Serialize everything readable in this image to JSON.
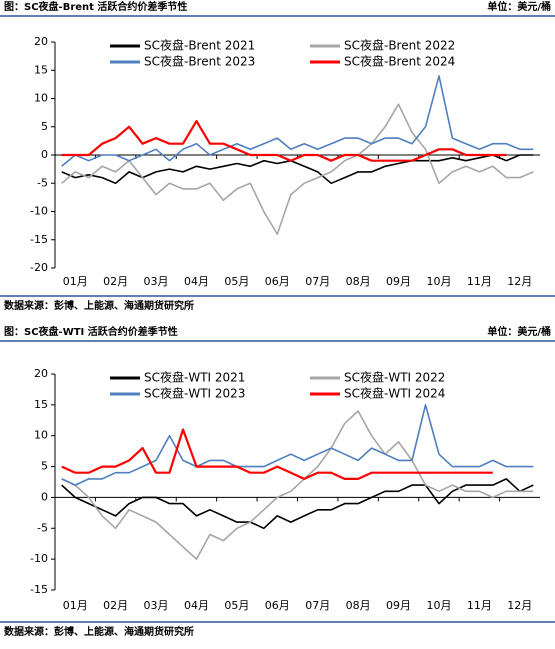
{
  "chart_data": [
    {
      "type": "line",
      "title": "图：SC夜盘-Brent 活跃合约价差季节性",
      "unit": "单位：美元/桶",
      "source": "数据来源：彭博、上能源、海通期货研究所",
      "categories": [
        "01月",
        null,
        null,
        "02月",
        null,
        null,
        "03月",
        null,
        null,
        "04月",
        null,
        null,
        "05月",
        null,
        null,
        "06月",
        null,
        null,
        "07月",
        null,
        null,
        "08月",
        null,
        null,
        "09月",
        null,
        null,
        "10月",
        null,
        null,
        "11月",
        null,
        null,
        "12月",
        null,
        null
      ],
      "ylim": [
        -20,
        20
      ],
      "yticks": [
        -20,
        -15,
        -10,
        -5,
        0,
        5,
        10,
        15,
        20
      ],
      "series": [
        {
          "name": "SC夜盘-Brent 2021",
          "color": "#000000",
          "values": [
            -3,
            -4,
            -3.5,
            -4,
            -5,
            -3,
            -4,
            -3,
            -2.5,
            -3,
            -2,
            -2.5,
            -2,
            -1.5,
            -2,
            -1,
            -1.5,
            -1,
            -2,
            -3,
            -5,
            -4,
            -3,
            -3,
            -2,
            -1.5,
            -1,
            -1,
            -1,
            -0.5,
            -1,
            -0.5,
            0,
            -1,
            0,
            0
          ]
        },
        {
          "name": "SC夜盘-Brent 2022",
          "color": "#a6a6a6",
          "values": [
            -5,
            -3,
            -4,
            -2,
            -3,
            -1,
            -4,
            -7,
            -5,
            -6,
            -6,
            -5,
            -8,
            -6,
            -5,
            -10,
            -14,
            -7,
            -5,
            -4,
            -3,
            -1,
            0,
            2,
            5,
            9,
            4,
            1,
            -5,
            -3,
            -2,
            -3,
            -2,
            -4,
            -4,
            -3
          ]
        },
        {
          "name": "SC夜盘-Brent 2023",
          "color": "#4f7fbf",
          "values": [
            -2,
            0,
            -1,
            0,
            0,
            -1,
            0,
            1,
            -1,
            1,
            2,
            0,
            1,
            2,
            1,
            2,
            3,
            1,
            2,
            1,
            2,
            3,
            3,
            2,
            3,
            3,
            2,
            5,
            14,
            3,
            2,
            1,
            2,
            2,
            1,
            1
          ]
        },
        {
          "name": "SC夜盘-Brent 2024",
          "color": "#ff0000",
          "values": [
            0,
            0,
            0,
            2,
            3,
            5,
            2,
            3,
            2,
            2,
            6,
            2,
            2,
            1,
            0,
            0,
            0,
            -1,
            0,
            0,
            -1,
            0,
            0,
            -1,
            -1,
            -1,
            -1,
            0,
            1,
            1,
            0,
            0,
            0,
            0,
            null,
            null
          ]
        }
      ]
    },
    {
      "type": "line",
      "title": "图：SC夜盘-WTI 活跃合约价差季节性",
      "unit": "单位：美元/桶",
      "source": "数据来源：彭博、上能源、海通期货研究所",
      "categories": [
        "01月",
        null,
        null,
        "02月",
        null,
        null,
        "03月",
        null,
        null,
        "04月",
        null,
        null,
        "05月",
        null,
        null,
        "06月",
        null,
        null,
        "07月",
        null,
        null,
        "08月",
        null,
        null,
        "09月",
        null,
        null,
        "10月",
        null,
        null,
        "11月",
        null,
        null,
        "12月",
        null,
        null
      ],
      "ylim": [
        -15,
        20
      ],
      "yticks": [
        -15,
        -10,
        -5,
        0,
        5,
        10,
        15,
        20
      ],
      "series": [
        {
          "name": "SC夜盘-WTI 2021",
          "color": "#000000",
          "values": [
            2,
            0,
            -1,
            -2,
            -3,
            -1,
            0,
            0,
            -1,
            -1,
            -3,
            -2,
            -3,
            -4,
            -4,
            -5,
            -3,
            -4,
            -3,
            -2,
            -2,
            -1,
            -1,
            0,
            1,
            1,
            2,
            2,
            -1,
            1,
            2,
            2,
            2,
            3,
            1,
            2
          ]
        },
        {
          "name": "SC夜盘-WTI 2022",
          "color": "#a6a6a6",
          "values": [
            3,
            2,
            0,
            -3,
            -5,
            -2,
            -3,
            -4,
            -6,
            -8,
            -10,
            -6,
            -7,
            -5,
            -4,
            -2,
            0,
            1,
            3,
            5,
            8,
            12,
            14,
            10,
            7,
            9,
            6,
            2,
            1,
            2,
            1,
            1,
            0,
            1,
            1,
            1
          ]
        },
        {
          "name": "SC夜盘-WTI 2023",
          "color": "#4f7fbf",
          "values": [
            3,
            2,
            3,
            3,
            4,
            4,
            5,
            6,
            10,
            6,
            5,
            6,
            6,
            5,
            5,
            5,
            6,
            7,
            6,
            7,
            8,
            7,
            6,
            8,
            7,
            6,
            6,
            15,
            7,
            5,
            5,
            5,
            6,
            5,
            5,
            5
          ]
        },
        {
          "name": "SC夜盘-WTI 2024",
          "color": "#ff0000",
          "values": [
            5,
            4,
            4,
            5,
            5,
            6,
            8,
            4,
            4,
            11,
            5,
            5,
            5,
            5,
            4,
            4,
            5,
            4,
            3,
            4,
            4,
            3,
            3,
            4,
            4,
            4,
            4,
            4,
            4,
            4,
            4,
            4,
            4,
            null,
            null,
            null
          ]
        }
      ]
    }
  ]
}
